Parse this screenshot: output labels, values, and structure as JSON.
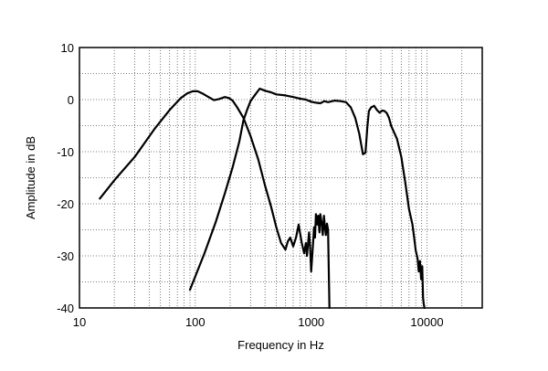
{
  "chart_data": {
    "type": "line",
    "title": "",
    "xlabel": "Frequency in Hz",
    "ylabel": "Amplitude in dB",
    "xscale": "log",
    "xlim": [
      10,
      30000
    ],
    "ylim": [
      -40,
      10
    ],
    "x_ticks": [
      {
        "value": 10,
        "label": "10"
      },
      {
        "value": 100,
        "label": "100"
      },
      {
        "value": 1000,
        "label": "1000"
      },
      {
        "value": 10000,
        "label": "10000"
      }
    ],
    "y_ticks": [
      {
        "value": 10,
        "label": "10"
      },
      {
        "value": 0,
        "label": "0"
      },
      {
        "value": -10,
        "label": "-10"
      },
      {
        "value": -20,
        "label": "-20"
      },
      {
        "value": -30,
        "label": "-30"
      },
      {
        "value": -40,
        "label": "-40"
      }
    ],
    "grid": true,
    "legend": "none",
    "colors": {
      "line": "#000000",
      "grid": "#555555",
      "frame": "#000000"
    },
    "series": [
      {
        "x": [
          15,
          20,
          30,
          45,
          60,
          75,
          85,
          95,
          105,
          115,
          130,
          145,
          160,
          180,
          195,
          210,
          230,
          260,
          300,
          350,
          400,
          450,
          500,
          550,
          600,
          630,
          660,
          700,
          740,
          780,
          800,
          830,
          870,
          900,
          920,
          940,
          960,
          980,
          1000,
          1040,
          1060,
          1080,
          1100,
          1130,
          1150,
          1180,
          1200,
          1230,
          1260,
          1290,
          1310,
          1340,
          1370,
          1400,
          1440
        ],
        "y": [
          -19,
          -15.5,
          -11,
          -5.5,
          -2,
          0.3,
          1.2,
          1.6,
          1.6,
          1.2,
          0.5,
          -0.1,
          0.1,
          0.5,
          0.3,
          -0.2,
          -1.5,
          -3.5,
          -7,
          -11.5,
          -16.5,
          -20.5,
          -24.5,
          -27.5,
          -28.8,
          -27.2,
          -26.5,
          -28.2,
          -26.5,
          -24,
          -25.5,
          -27.5,
          -29.5,
          -27.5,
          -30,
          -27.8,
          -25.5,
          -28.3,
          -33,
          -27.5,
          -24.5,
          -26.5,
          -22,
          -24,
          -22.3,
          -25.5,
          -22,
          -23.5,
          -26,
          -22.3,
          -24,
          -26,
          -23.8,
          -25,
          -40
        ]
      },
      {
        "x": [
          90,
          120,
          150,
          180,
          210,
          240,
          260,
          280,
          300,
          330,
          360,
          400,
          450,
          500,
          600,
          700,
          800,
          900,
          1000,
          1100,
          1200,
          1300,
          1400,
          1600,
          1800,
          2000,
          2200,
          2400,
          2600,
          2800,
          2950,
          3050,
          3150,
          3300,
          3500,
          3700,
          3900,
          4100,
          4300,
          4500,
          4700,
          4900,
          5200,
          5500,
          6000,
          6500,
          7000,
          7500,
          7800,
          8000,
          8300,
          8500,
          8700,
          8900,
          9100,
          9250,
          9350,
          9500
        ],
        "y": [
          -36.5,
          -29.5,
          -23.5,
          -18,
          -13,
          -8,
          -4,
          -2,
          -0.3,
          1,
          2.1,
          1.7,
          1.4,
          1,
          0.8,
          0.5,
          0.2,
          0,
          -0.4,
          -0.6,
          -0.7,
          -0.3,
          -0.5,
          -0.2,
          -0.3,
          -0.5,
          -1.5,
          -3.5,
          -6.5,
          -10.5,
          -10.2,
          -5.5,
          -2.2,
          -1.5,
          -1.2,
          -2,
          -2.5,
          -2.1,
          -2.2,
          -2.6,
          -3.5,
          -5,
          -6.3,
          -7.5,
          -11,
          -16,
          -21,
          -24,
          -27,
          -29,
          -30.5,
          -33,
          -31,
          -34.5,
          -32,
          -38,
          -39,
          -40
        ]
      }
    ]
  }
}
